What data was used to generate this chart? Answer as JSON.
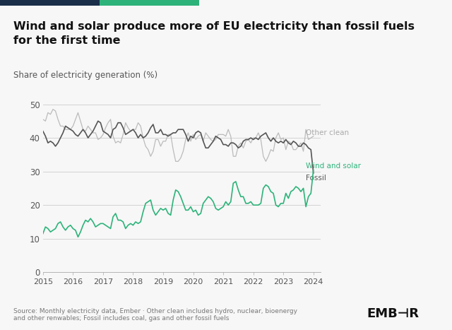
{
  "title": "Wind and solar produce more of EU electricity than fossil fuels\nfor the first time",
  "subtitle": "Share of electricity generation (%)",
  "source_text": "Source: Monthly electricity data, Ember · Other clean includes hydro, nuclear, bioenergy\nand other renwables; Fossil includes coal, gas and other fossil fuels",
  "background_color": "#f7f7f7",
  "plot_bg_color": "#f7f7f7",
  "ylim": [
    0,
    55
  ],
  "yticks": [
    0,
    10,
    20,
    30,
    40,
    50
  ],
  "xlim_start": 2015.0,
  "xlim_end": 2024.25,
  "header_dark_color": "#1a2e4a",
  "header_green_color": "#2db37a",
  "wind_solar_color": "#2db37a",
  "fossil_color": "#555555",
  "other_clean_color": "#bbbbbb",
  "wind_solar_label": "Wind and solar",
  "fossil_label": "Fossil",
  "other_clean_label": "Other clean",
  "ember_text": "EMB⊣R",
  "wind_solar": [
    11.5,
    13.5,
    13.0,
    12.0,
    12.5,
    13.0,
    14.5,
    15.0,
    13.5,
    12.5,
    13.5,
    14.0,
    13.0,
    12.5,
    10.5,
    12.0,
    14.0,
    15.5,
    15.0,
    16.0,
    15.0,
    13.5,
    14.0,
    14.5,
    14.5,
    14.0,
    13.5,
    13.0,
    16.5,
    17.5,
    15.5,
    15.5,
    15.0,
    13.0,
    14.0,
    14.5,
    14.0,
    15.0,
    14.5,
    15.0,
    18.0,
    20.5,
    21.0,
    21.5,
    18.5,
    17.0,
    18.0,
    19.0,
    18.5,
    19.0,
    17.5,
    17.0,
    21.5,
    24.5,
    24.0,
    22.5,
    20.5,
    18.5,
    18.5,
    19.5,
    18.0,
    18.5,
    17.0,
    17.5,
    20.5,
    21.5,
    22.5,
    22.0,
    21.0,
    19.0,
    18.5,
    19.0,
    19.5,
    21.0,
    20.0,
    21.0,
    26.5,
    27.0,
    24.5,
    22.5,
    22.5,
    20.5,
    20.5,
    21.0,
    20.0,
    20.0,
    20.0,
    20.5,
    25.0,
    26.0,
    25.5,
    24.0,
    23.5,
    20.0,
    19.5,
    20.5,
    20.5,
    23.5,
    22.0,
    24.0,
    24.5,
    25.5,
    25.0,
    24.0,
    25.0,
    19.5,
    22.5,
    23.5,
    30.5
  ],
  "fossil": [
    42.0,
    40.5,
    38.5,
    39.0,
    38.5,
    37.5,
    38.5,
    40.0,
    41.5,
    43.5,
    43.0,
    42.5,
    42.0,
    41.0,
    40.5,
    41.5,
    42.5,
    41.5,
    40.0,
    41.0,
    42.0,
    43.5,
    45.0,
    44.5,
    42.0,
    41.5,
    41.0,
    40.0,
    42.5,
    43.0,
    44.5,
    44.5,
    43.0,
    41.0,
    41.5,
    42.0,
    42.5,
    41.5,
    40.0,
    41.0,
    40.0,
    40.5,
    41.5,
    43.0,
    44.0,
    41.5,
    41.5,
    42.5,
    41.0,
    41.0,
    40.5,
    41.0,
    41.5,
    41.5,
    42.5,
    42.5,
    42.5,
    41.0,
    39.0,
    40.5,
    40.0,
    41.5,
    42.0,
    41.5,
    39.0,
    37.0,
    37.0,
    38.0,
    39.0,
    40.5,
    40.0,
    39.5,
    38.0,
    38.0,
    37.5,
    38.5,
    38.5,
    38.0,
    37.0,
    37.5,
    39.0,
    39.5,
    39.5,
    40.0,
    39.5,
    40.0,
    39.5,
    40.5,
    41.0,
    41.5,
    40.0,
    39.0,
    40.0,
    39.0,
    38.5,
    39.0,
    38.5,
    39.5,
    38.5,
    38.0,
    39.0,
    38.5,
    37.5,
    37.5,
    38.5,
    38.0,
    37.0,
    36.5,
    29.5
  ],
  "other_clean": [
    45.5,
    45.0,
    47.5,
    47.0,
    48.5,
    48.0,
    45.5,
    43.5,
    43.5,
    42.5,
    42.5,
    42.5,
    43.5,
    45.5,
    47.5,
    45.0,
    42.5,
    42.0,
    43.5,
    42.5,
    41.5,
    41.5,
    39.5,
    40.0,
    41.0,
    43.0,
    44.5,
    45.5,
    40.5,
    38.5,
    39.0,
    38.5,
    41.0,
    44.5,
    43.0,
    42.0,
    42.5,
    42.5,
    44.5,
    43.5,
    40.0,
    37.5,
    36.5,
    34.5,
    36.0,
    39.5,
    39.5,
    37.5,
    39.0,
    39.0,
    41.0,
    41.0,
    36.5,
    33.0,
    33.0,
    34.0,
    36.0,
    39.5,
    41.5,
    39.0,
    41.0,
    39.5,
    40.5,
    41.0,
    39.0,
    41.5,
    40.5,
    39.5,
    39.0,
    39.5,
    41.0,
    41.0,
    41.0,
    40.5,
    42.5,
    40.5,
    34.5,
    34.5,
    37.5,
    38.5,
    37.0,
    39.0,
    39.5,
    38.5,
    40.0,
    40.0,
    41.5,
    39.5,
    34.5,
    33.0,
    34.5,
    36.5,
    36.0,
    40.0,
    41.5,
    39.5,
    40.0,
    36.5,
    39.0,
    38.5,
    36.5,
    36.5,
    37.5,
    38.5,
    36.0,
    42.5,
    39.5,
    40.0,
    40.5
  ]
}
